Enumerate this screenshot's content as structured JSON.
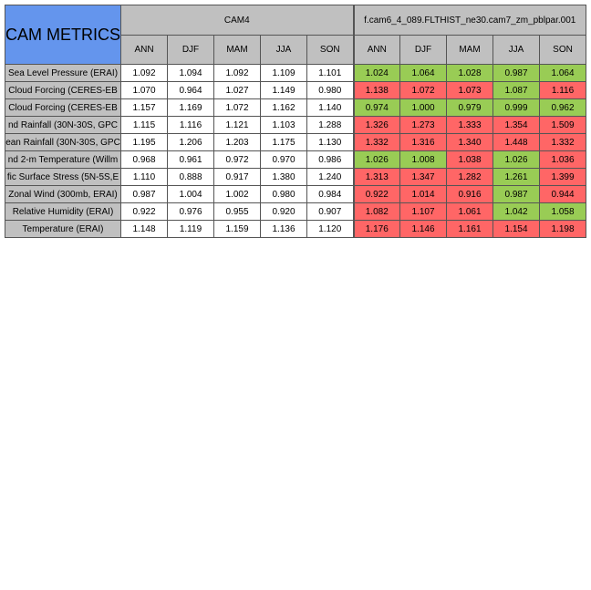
{
  "title": "CAM METRICS",
  "groups": [
    {
      "label": "CAM4"
    },
    {
      "label": "f.cam6_4_089.FLTHIST_ne30.cam7_zm_pblpar.001"
    }
  ],
  "seasons": [
    "ANN",
    "DJF",
    "MAM",
    "JJA",
    "SON"
  ],
  "colors": {
    "title_bg": "#6495ed",
    "header_bg": "#c0c0c0",
    "better": "#99cc55",
    "worse": "#ff6666"
  },
  "rows": [
    {
      "label": "Sea Level Pressure (ERAI)",
      "cam4": [
        "1.092",
        "1.094",
        "1.092",
        "1.109",
        "1.101"
      ],
      "cam6": [
        "1.024",
        "1.064",
        "1.028",
        "0.987",
        "1.064"
      ],
      "cam6_status": [
        "good",
        "good",
        "good",
        "good",
        "good"
      ]
    },
    {
      "label": "Cloud Forcing (CERES-EB",
      "cam4": [
        "1.070",
        "0.964",
        "1.027",
        "1.149",
        "0.980"
      ],
      "cam6": [
        "1.138",
        "1.072",
        "1.073",
        "1.087",
        "1.116"
      ],
      "cam6_status": [
        "bad",
        "bad",
        "bad",
        "good",
        "bad"
      ]
    },
    {
      "label": "Cloud Forcing (CERES-EB",
      "cam4": [
        "1.157",
        "1.169",
        "1.072",
        "1.162",
        "1.140"
      ],
      "cam6": [
        "0.974",
        "1.000",
        "0.979",
        "0.999",
        "0.962"
      ],
      "cam6_status": [
        "good",
        "good",
        "good",
        "good",
        "good"
      ]
    },
    {
      "label": "nd Rainfall (30N-30S, GPC",
      "cam4": [
        "1.115",
        "1.116",
        "1.121",
        "1.103",
        "1.288"
      ],
      "cam6": [
        "1.326",
        "1.273",
        "1.333",
        "1.354",
        "1.509"
      ],
      "cam6_status": [
        "bad",
        "bad",
        "bad",
        "bad",
        "bad"
      ]
    },
    {
      "label": "ean Rainfall (30N-30S, GPC",
      "cam4": [
        "1.195",
        "1.206",
        "1.203",
        "1.175",
        "1.130"
      ],
      "cam6": [
        "1.332",
        "1.316",
        "1.340",
        "1.448",
        "1.332"
      ],
      "cam6_status": [
        "bad",
        "bad",
        "bad",
        "bad",
        "bad"
      ]
    },
    {
      "label": "nd 2-m Temperature (Willm",
      "cam4": [
        "0.968",
        "0.961",
        "0.972",
        "0.970",
        "0.986"
      ],
      "cam6": [
        "1.026",
        "1.008",
        "1.038",
        "1.026",
        "1.036"
      ],
      "cam6_status": [
        "good",
        "good",
        "bad",
        "good",
        "bad"
      ]
    },
    {
      "label": "fic Surface Stress (5N-5S,E",
      "cam4": [
        "1.110",
        "0.888",
        "0.917",
        "1.380",
        "1.240"
      ],
      "cam6": [
        "1.313",
        "1.347",
        "1.282",
        "1.261",
        "1.399"
      ],
      "cam6_status": [
        "bad",
        "bad",
        "bad",
        "good",
        "bad"
      ]
    },
    {
      "label": "Zonal Wind (300mb, ERAI)",
      "cam4": [
        "0.987",
        "1.004",
        "1.002",
        "0.980",
        "0.984"
      ],
      "cam6": [
        "0.922",
        "1.014",
        "0.916",
        "0.987",
        "0.944"
      ],
      "cam6_status": [
        "bad",
        "bad",
        "bad",
        "good",
        "bad"
      ]
    },
    {
      "label": "Relative Humidity (ERAI)",
      "cam4": [
        "0.922",
        "0.976",
        "0.955",
        "0.920",
        "0.907"
      ],
      "cam6": [
        "1.082",
        "1.107",
        "1.061",
        "1.042",
        "1.058"
      ],
      "cam6_status": [
        "bad",
        "bad",
        "bad",
        "good",
        "good"
      ]
    },
    {
      "label": "Temperature (ERAI)",
      "cam4": [
        "1.148",
        "1.119",
        "1.159",
        "1.136",
        "1.120"
      ],
      "cam6": [
        "1.176",
        "1.146",
        "1.161",
        "1.154",
        "1.198"
      ],
      "cam6_status": [
        "bad",
        "bad",
        "bad",
        "bad",
        "bad"
      ]
    }
  ]
}
